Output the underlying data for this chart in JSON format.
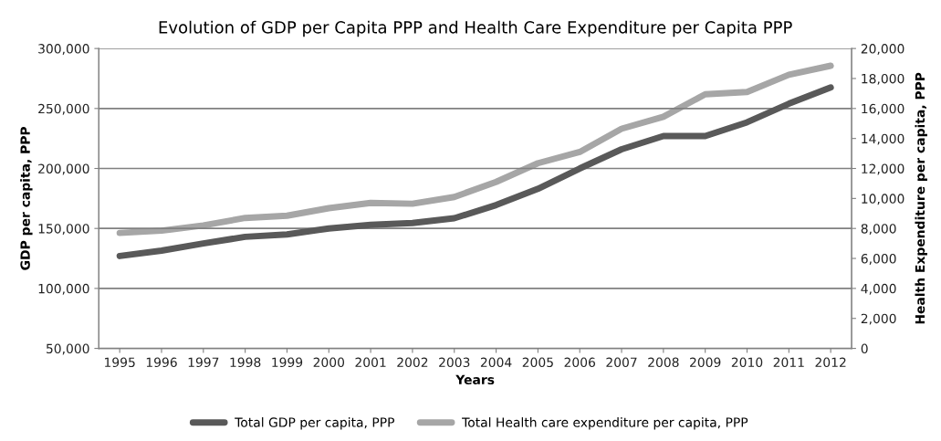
{
  "chart_data": {
    "type": "line",
    "title": "Evolution of GDP per Capita PPP and Health Care Expenditure per Capita PPP",
    "xlabel": "Years",
    "ylabel": "GDP per capita, PPP",
    "y2label": "Health Expenditure per capita, PPP",
    "categories": [
      "1995",
      "1996",
      "1997",
      "1998",
      "1999",
      "2000",
      "2001",
      "2002",
      "2003",
      "2004",
      "2005",
      "2006",
      "2007",
      "2008",
      "2009",
      "2010",
      "2011",
      "2012"
    ],
    "series": [
      {
        "name": "Total GDP per capita, PPP",
        "color": "#595959",
        "values": [
          127000,
          131500,
          137500,
          143000,
          145000,
          150000,
          153000,
          154500,
          158500,
          169500,
          183000,
          200000,
          216000,
          227000,
          227000,
          238500,
          254000,
          267500
        ]
      },
      {
        "name": "Total Health care expenditure per capita, PPP",
        "color": "#a6a6a6",
        "axis": "y2",
        "values": [
          7700,
          7850,
          8200,
          8700,
          8850,
          9350,
          9700,
          9650,
          10100,
          11100,
          12350,
          13100,
          14650,
          15450,
          16950,
          17100,
          18250,
          18850
        ]
      }
    ],
    "ylim": [
      50000,
      300000
    ],
    "yticks": [
      {
        "value": 50000,
        "label": "50,000"
      },
      {
        "value": 100000,
        "label": "100,000"
      },
      {
        "value": 150000,
        "label": "150,000"
      },
      {
        "value": 200000,
        "label": "200,000"
      },
      {
        "value": 250000,
        "label": "250,000"
      },
      {
        "value": 300000,
        "label": "300,000"
      }
    ],
    "y2lim": [
      0,
      20000
    ],
    "y2ticks": [
      0,
      {
        "value": 2000,
        "label": "2,000"
      },
      {
        "value": 4000,
        "label": "4,000"
      },
      {
        "value": 6000,
        "label": "6,000"
      },
      {
        "value": 8000,
        "label": "8,000"
      },
      {
        "value": 10000,
        "label": "10,000"
      },
      {
        "value": 12000,
        "label": "12,000"
      },
      {
        "value": 14000,
        "label": "14,000"
      },
      {
        "value": 16000,
        "label": "16,000"
      },
      {
        "value": 18000,
        "label": "18,000"
      },
      {
        "value": 20000,
        "label": "20,000"
      }
    ],
    "grid": "y",
    "legend": "bottom",
    "marker": "none",
    "line_style": "solid"
  }
}
